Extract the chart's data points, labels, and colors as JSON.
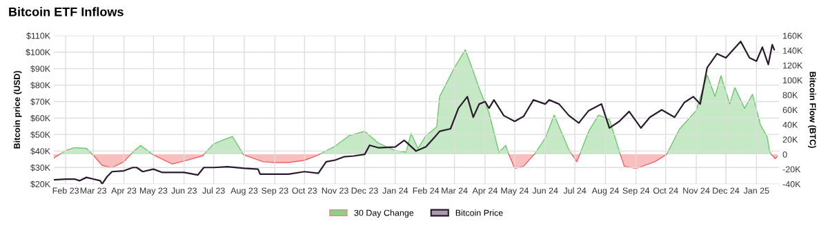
{
  "chart_data": {
    "type": "line",
    "title": "Bitcoin ETF Inflows",
    "ylabel": "Bitcoin price (USD)",
    "y2label": "Bitcoin Flow (BTC)",
    "xlim": [
      "2023-01-20",
      "2025-01-24"
    ],
    "xticks": [
      {
        "value": "2023-02-01",
        "label": "Feb 23"
      },
      {
        "value": "2023-03-01",
        "label": "Mar 23"
      },
      {
        "value": "2023-04-01",
        "label": "Apr 23"
      },
      {
        "value": "2023-05-01",
        "label": "May 23"
      },
      {
        "value": "2023-06-01",
        "label": "Jun 23"
      },
      {
        "value": "2023-07-01",
        "label": "Jul 23"
      },
      {
        "value": "2023-08-01",
        "label": "Aug 23"
      },
      {
        "value": "2023-09-01",
        "label": "Sep 23"
      },
      {
        "value": "2023-10-01",
        "label": "Oct 23"
      },
      {
        "value": "2023-11-01",
        "label": "Nov 23"
      },
      {
        "value": "2023-12-01",
        "label": "Dec 23"
      },
      {
        "value": "2024-01-01",
        "label": "Jan 24"
      },
      {
        "value": "2024-02-01",
        "label": "Feb 24"
      },
      {
        "value": "2024-03-01",
        "label": "Mar 24"
      },
      {
        "value": "2024-04-01",
        "label": "Apr 24"
      },
      {
        "value": "2024-05-01",
        "label": "May 24"
      },
      {
        "value": "2024-06-01",
        "label": "Jun 24"
      },
      {
        "value": "2024-07-01",
        "label": "Jul 24"
      },
      {
        "value": "2024-08-01",
        "label": "Aug 24"
      },
      {
        "value": "2024-09-01",
        "label": "Sep 24"
      },
      {
        "value": "2024-10-01",
        "label": "Oct 24"
      },
      {
        "value": "2024-11-01",
        "label": "Nov 24"
      },
      {
        "value": "2024-12-01",
        "label": "Dec 24"
      },
      {
        "value": "2025-01-01",
        "label": "Jan 25"
      }
    ],
    "ylim": [
      20000,
      110000
    ],
    "yticks": [
      {
        "value": 20000,
        "label": "$20K"
      },
      {
        "value": 30000,
        "label": "$30K"
      },
      {
        "value": 40000,
        "label": "$40K"
      },
      {
        "value": 50000,
        "label": "$50K"
      },
      {
        "value": 60000,
        "label": "$60K"
      },
      {
        "value": 70000,
        "label": "$70K"
      },
      {
        "value": 80000,
        "label": "$80K"
      },
      {
        "value": 90000,
        "label": "$90K"
      },
      {
        "value": 100000,
        "label": "$100K"
      },
      {
        "value": 110000,
        "label": "$110K"
      }
    ],
    "y2lim": [
      -40000,
      160000
    ],
    "y2ticks": [
      {
        "value": -40000,
        "label": "-40K"
      },
      {
        "value": -20000,
        "label": "-20K"
      },
      0,
      {
        "value": 20000,
        "label": "20K"
      },
      {
        "value": 40000,
        "label": "40K"
      },
      {
        "value": 60000,
        "label": "60K"
      },
      {
        "value": 80000,
        "label": "80K"
      },
      {
        "value": 100000,
        "label": "100K"
      },
      {
        "value": 120000,
        "label": "120K"
      },
      {
        "value": 140000,
        "label": "140K"
      },
      {
        "value": 160000,
        "label": "160K"
      }
    ],
    "grid": true,
    "legend": "bottom",
    "series": [
      {
        "name": "30 Day Change",
        "type": "area",
        "axis": "y2",
        "color": "#6cc76c",
        "x": [
          "2023-01-26",
          "2023-02-01",
          "2023-02-10",
          "2023-02-22",
          "2023-02-28",
          "2023-03-01",
          "2023-03-10",
          "2023-03-20",
          "2023-04-01",
          "2023-04-08",
          "2023-04-10",
          "2023-04-18",
          "2023-04-30",
          "2023-05-01",
          "2023-05-20",
          "2023-06-01",
          "2023-06-20",
          "2023-06-21",
          "2023-07-01",
          "2023-07-10",
          "2023-07-20",
          "2023-07-31",
          "2023-08-01",
          "2023-08-20",
          "2023-09-01",
          "2023-09-15",
          "2023-10-01",
          "2023-10-15",
          "2023-10-16",
          "2023-11-01",
          "2023-11-15",
          "2023-12-01",
          "2023-12-15",
          "2024-01-01",
          "2024-01-12",
          "2024-01-17",
          "2024-01-24",
          "2024-02-01",
          "2024-02-12",
          "2024-02-15",
          "2024-03-01",
          "2024-03-12",
          "2024-03-20",
          "2024-03-26",
          "2024-04-05",
          "2024-04-15",
          "2024-04-22",
          "2024-04-25",
          "2024-05-01",
          "2024-05-10",
          "2024-05-20",
          "2024-05-21",
          "2024-06-01",
          "2024-06-10",
          "2024-06-25",
          "2024-06-28",
          "2024-07-03",
          "2024-07-06",
          "2024-07-15",
          "2024-07-25",
          "2024-08-05",
          "2024-08-16",
          "2024-08-20",
          "2024-09-01",
          "2024-09-20",
          "2024-10-01",
          "2024-10-02",
          "2024-10-15",
          "2024-11-01",
          "2024-11-12",
          "2024-11-20",
          "2024-11-26",
          "2024-12-05",
          "2024-12-10",
          "2024-12-20",
          "2024-12-28",
          "2025-01-05",
          "2025-01-12",
          "2025-01-14",
          "2025-01-16"
        ],
        "values": [
          0,
          5000,
          9000,
          8000,
          0,
          null,
          null,
          null,
          null,
          0,
          3000,
          12000,
          0,
          null,
          null,
          null,
          null,
          0,
          14000,
          19000,
          24000,
          0,
          null,
          null,
          null,
          null,
          null,
          null,
          0,
          11000,
          25000,
          31000,
          15000,
          5000,
          3000,
          28000,
          8000,
          25000,
          37000,
          78000,
          117000,
          141000,
          112000,
          89000,
          56000,
          3000,
          12000,
          0,
          null,
          null,
          null,
          0,
          22000,
          53000,
          6000,
          0,
          null,
          0,
          31000,
          53000,
          47000,
          0,
          null,
          null,
          null,
          null,
          0,
          34000,
          59000,
          107000,
          78000,
          106000,
          68000,
          90000,
          62000,
          81000,
          40000,
          23000,
          6000,
          0
        ]
      },
      {
        "type": "area",
        "axis": "y2",
        "color": "#f06060",
        "x": [
          "2023-01-20",
          "2023-01-26",
          "2023-02-01",
          "2023-02-10",
          "2023-02-22",
          "2023-02-28",
          "2023-03-01",
          "2023-03-10",
          "2023-03-20",
          "2023-04-01",
          "2023-04-08",
          "2023-04-10",
          "2023-04-18",
          "2023-04-30",
          "2023-05-01",
          "2023-05-20",
          "2023-06-01",
          "2023-06-20",
          "2023-06-21",
          "2023-07-01",
          "2023-07-10",
          "2023-07-20",
          "2023-07-31",
          "2023-08-01",
          "2023-08-20",
          "2023-09-01",
          "2023-09-15",
          "2023-10-01",
          "2023-10-15",
          "2023-10-16",
          "2023-11-01",
          "2023-11-15",
          "2023-12-01",
          "2023-12-15",
          "2024-01-01",
          "2024-01-12",
          "2024-01-17",
          "2024-01-24",
          "2024-02-01",
          "2024-02-12",
          "2024-02-15",
          "2024-03-01",
          "2024-03-12",
          "2024-03-20",
          "2024-03-26",
          "2024-04-05",
          "2024-04-15",
          "2024-04-22",
          "2024-04-25",
          "2024-05-01",
          "2024-05-10",
          "2024-05-20",
          "2024-05-21",
          "2024-06-01",
          "2024-06-10",
          "2024-06-25",
          "2024-06-28",
          "2024-07-03",
          "2024-07-06",
          "2024-07-15",
          "2024-07-25",
          "2024-08-05",
          "2024-08-16",
          "2024-08-20",
          "2024-09-01",
          "2024-09-20",
          "2024-10-01",
          "2024-10-02",
          "2024-10-15",
          "2024-11-01",
          "2024-11-12",
          "2024-11-20",
          "2024-11-26",
          "2024-12-05",
          "2024-12-10",
          "2024-12-20",
          "2024-12-28",
          "2025-01-05",
          "2025-01-12",
          "2025-01-14",
          "2025-01-16",
          "2025-01-20",
          "2025-01-22"
        ],
        "values": [
          -5000,
          0,
          null,
          null,
          null,
          0,
          -1000,
          -15000,
          -18000,
          -10000,
          0,
          null,
          null,
          0,
          -1000,
          -13000,
          -9000,
          -2000,
          0,
          null,
          null,
          null,
          0,
          -1000,
          -10000,
          -11000,
          -11000,
          -8000,
          -1000,
          0,
          null,
          null,
          null,
          null,
          null,
          null,
          null,
          null,
          null,
          null,
          null,
          null,
          null,
          null,
          null,
          null,
          null,
          null,
          0,
          -19000,
          -16000,
          -1000,
          0,
          null,
          null,
          null,
          0,
          -10000,
          0,
          null,
          null,
          null,
          0,
          -16000,
          -19000,
          -10000,
          -1000,
          0,
          null,
          null,
          null,
          null,
          null,
          null,
          null,
          null,
          null,
          null,
          null,
          null,
          0,
          -6000,
          -3000
        ]
      },
      {
        "name": "Bitcoin Price",
        "color": "#2a1a2e",
        "x": [
          "2023-01-20",
          "2023-02-01",
          "2023-02-10",
          "2023-02-15",
          "2023-02-22",
          "2023-03-01",
          "2023-03-08",
          "2023-03-10",
          "2023-03-15",
          "2023-03-20",
          "2023-04-01",
          "2023-04-10",
          "2023-04-14",
          "2023-04-20",
          "2023-05-01",
          "2023-05-10",
          "2023-06-01",
          "2023-06-15",
          "2023-06-21",
          "2023-07-01",
          "2023-07-15",
          "2023-08-01",
          "2023-08-15",
          "2023-08-17",
          "2023-09-01",
          "2023-09-15",
          "2023-10-01",
          "2023-10-15",
          "2023-10-23",
          "2023-11-01",
          "2023-11-10",
          "2023-11-20",
          "2023-12-01",
          "2023-12-06",
          "2023-12-15",
          "2024-01-01",
          "2024-01-10",
          "2024-01-12",
          "2024-01-22",
          "2024-02-01",
          "2024-02-10",
          "2024-02-15",
          "2024-02-26",
          "2024-03-05",
          "2024-03-14",
          "2024-03-20",
          "2024-03-26",
          "2024-04-01",
          "2024-04-05",
          "2024-04-10",
          "2024-04-20",
          "2024-05-01",
          "2024-05-10",
          "2024-05-20",
          "2024-06-01",
          "2024-06-05",
          "2024-06-15",
          "2024-06-25",
          "2024-07-05",
          "2024-07-15",
          "2024-07-28",
          "2024-08-05",
          "2024-08-15",
          "2024-08-25",
          "2024-09-06",
          "2024-09-15",
          "2024-09-27",
          "2024-10-10",
          "2024-10-20",
          "2024-10-29",
          "2024-11-05",
          "2024-11-12",
          "2024-11-22",
          "2024-12-01",
          "2024-12-16",
          "2024-12-25",
          "2025-01-01",
          "2025-01-07",
          "2025-01-13",
          "2025-01-17",
          "2025-01-19"
        ],
        "values": [
          22500,
          23000,
          23000,
          22000,
          24000,
          23000,
          22000,
          20000,
          24500,
          27500,
          28000,
          30000,
          30000,
          27500,
          29000,
          27000,
          27000,
          25500,
          30000,
          30000,
          30500,
          29500,
          29000,
          26000,
          26000,
          26000,
          27500,
          26500,
          33500,
          34500,
          36500,
          37000,
          38000,
          43500,
          42000,
          42500,
          46500,
          45500,
          40000,
          42500,
          48500,
          52000,
          53500,
          66000,
          73000,
          60500,
          68500,
          70000,
          66000,
          71000,
          61500,
          58000,
          61000,
          71000,
          68500,
          71000,
          68500,
          61500,
          57000,
          64500,
          68500,
          54000,
          58000,
          64000,
          54000,
          60500,
          65000,
          60500,
          69500,
          73000,
          68500,
          90500,
          99000,
          96500,
          106500,
          96500,
          94500,
          103000,
          92500,
          104500,
          101500
        ]
      }
    ]
  }
}
